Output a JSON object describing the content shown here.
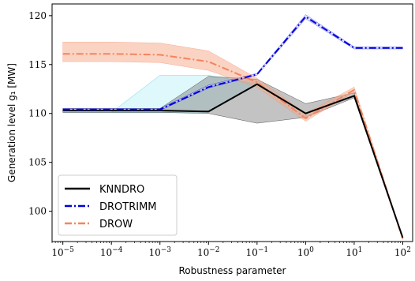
{
  "chart_data": {
    "type": "line",
    "xlabel": "Robustness parameter",
    "ylabel": "Generation level g₁ [MW]",
    "x_scale": "log",
    "xlim": [
      6e-06,
      160.0
    ],
    "ylim": [
      96.9,
      121.2
    ],
    "x": [
      1e-05,
      0.0001,
      0.001,
      0.01,
      0.1,
      1,
      10,
      100
    ],
    "x_ticks": [
      {
        "value": 1e-05,
        "base": "10",
        "exp": "−5"
      },
      {
        "value": 0.0001,
        "base": "10",
        "exp": "−4"
      },
      {
        "value": 0.001,
        "base": "10",
        "exp": "−3"
      },
      {
        "value": 0.01,
        "base": "10",
        "exp": "−2"
      },
      {
        "value": 0.1,
        "base": "10",
        "exp": "−1"
      },
      {
        "value": 1,
        "base": "10",
        "exp": "0"
      },
      {
        "value": 10,
        "base": "10",
        "exp": "1"
      },
      {
        "value": 100,
        "base": "10",
        "exp": "2"
      }
    ],
    "y_ticks": [
      100,
      105,
      110,
      115,
      120
    ],
    "grid": false,
    "legend": {
      "position": "bottom-left"
    },
    "series": [
      {
        "name": "KNNDRO",
        "color": "#000000",
        "band_color": "#7a7a7a",
        "style": "solid",
        "values": [
          110.3,
          110.3,
          110.3,
          110.2,
          113.0,
          110.0,
          111.8,
          97.3
        ],
        "band_lower": [
          110.1,
          110.1,
          110.1,
          110.0,
          109.0,
          109.6,
          111.6,
          97.2
        ],
        "band_upper": [
          110.5,
          110.5,
          110.5,
          113.8,
          113.5,
          111.0,
          112.1,
          97.4
        ]
      },
      {
        "name": "DROTRIMM",
        "color": "#0000dd",
        "band_color": "#b0b8ff",
        "style": "dashdot",
        "values": [
          110.4,
          110.4,
          110.4,
          112.7,
          114.0,
          119.9,
          116.7,
          116.7
        ],
        "band_lower": [
          110.3,
          110.3,
          110.3,
          112.6,
          113.9,
          119.7,
          116.6,
          116.6
        ],
        "band_upper": [
          110.5,
          110.5,
          110.5,
          112.9,
          114.1,
          120.1,
          116.8,
          116.8
        ]
      },
      {
        "name": "DROW",
        "color": "#f4845f",
        "band_color": "#f8a888",
        "style": "dashdot",
        "values": [
          116.1,
          116.1,
          116.0,
          115.3,
          113.2,
          109.5,
          112.4,
          97.2
        ],
        "band_lower": [
          115.3,
          115.3,
          115.2,
          114.4,
          112.7,
          109.2,
          112.2,
          97.1
        ],
        "band_upper": [
          117.3,
          117.3,
          117.2,
          116.4,
          113.6,
          110.0,
          112.7,
          97.3
        ]
      }
    ],
    "extra_bands": [
      {
        "color": "#c8f4f8",
        "lower": [
          110.1,
          110.1,
          110.1,
          110.1,
          113.0,
          null,
          null,
          null
        ],
        "upper": [
          110.1,
          110.1,
          113.9,
          113.9,
          113.0,
          null,
          null,
          null
        ]
      }
    ]
  }
}
